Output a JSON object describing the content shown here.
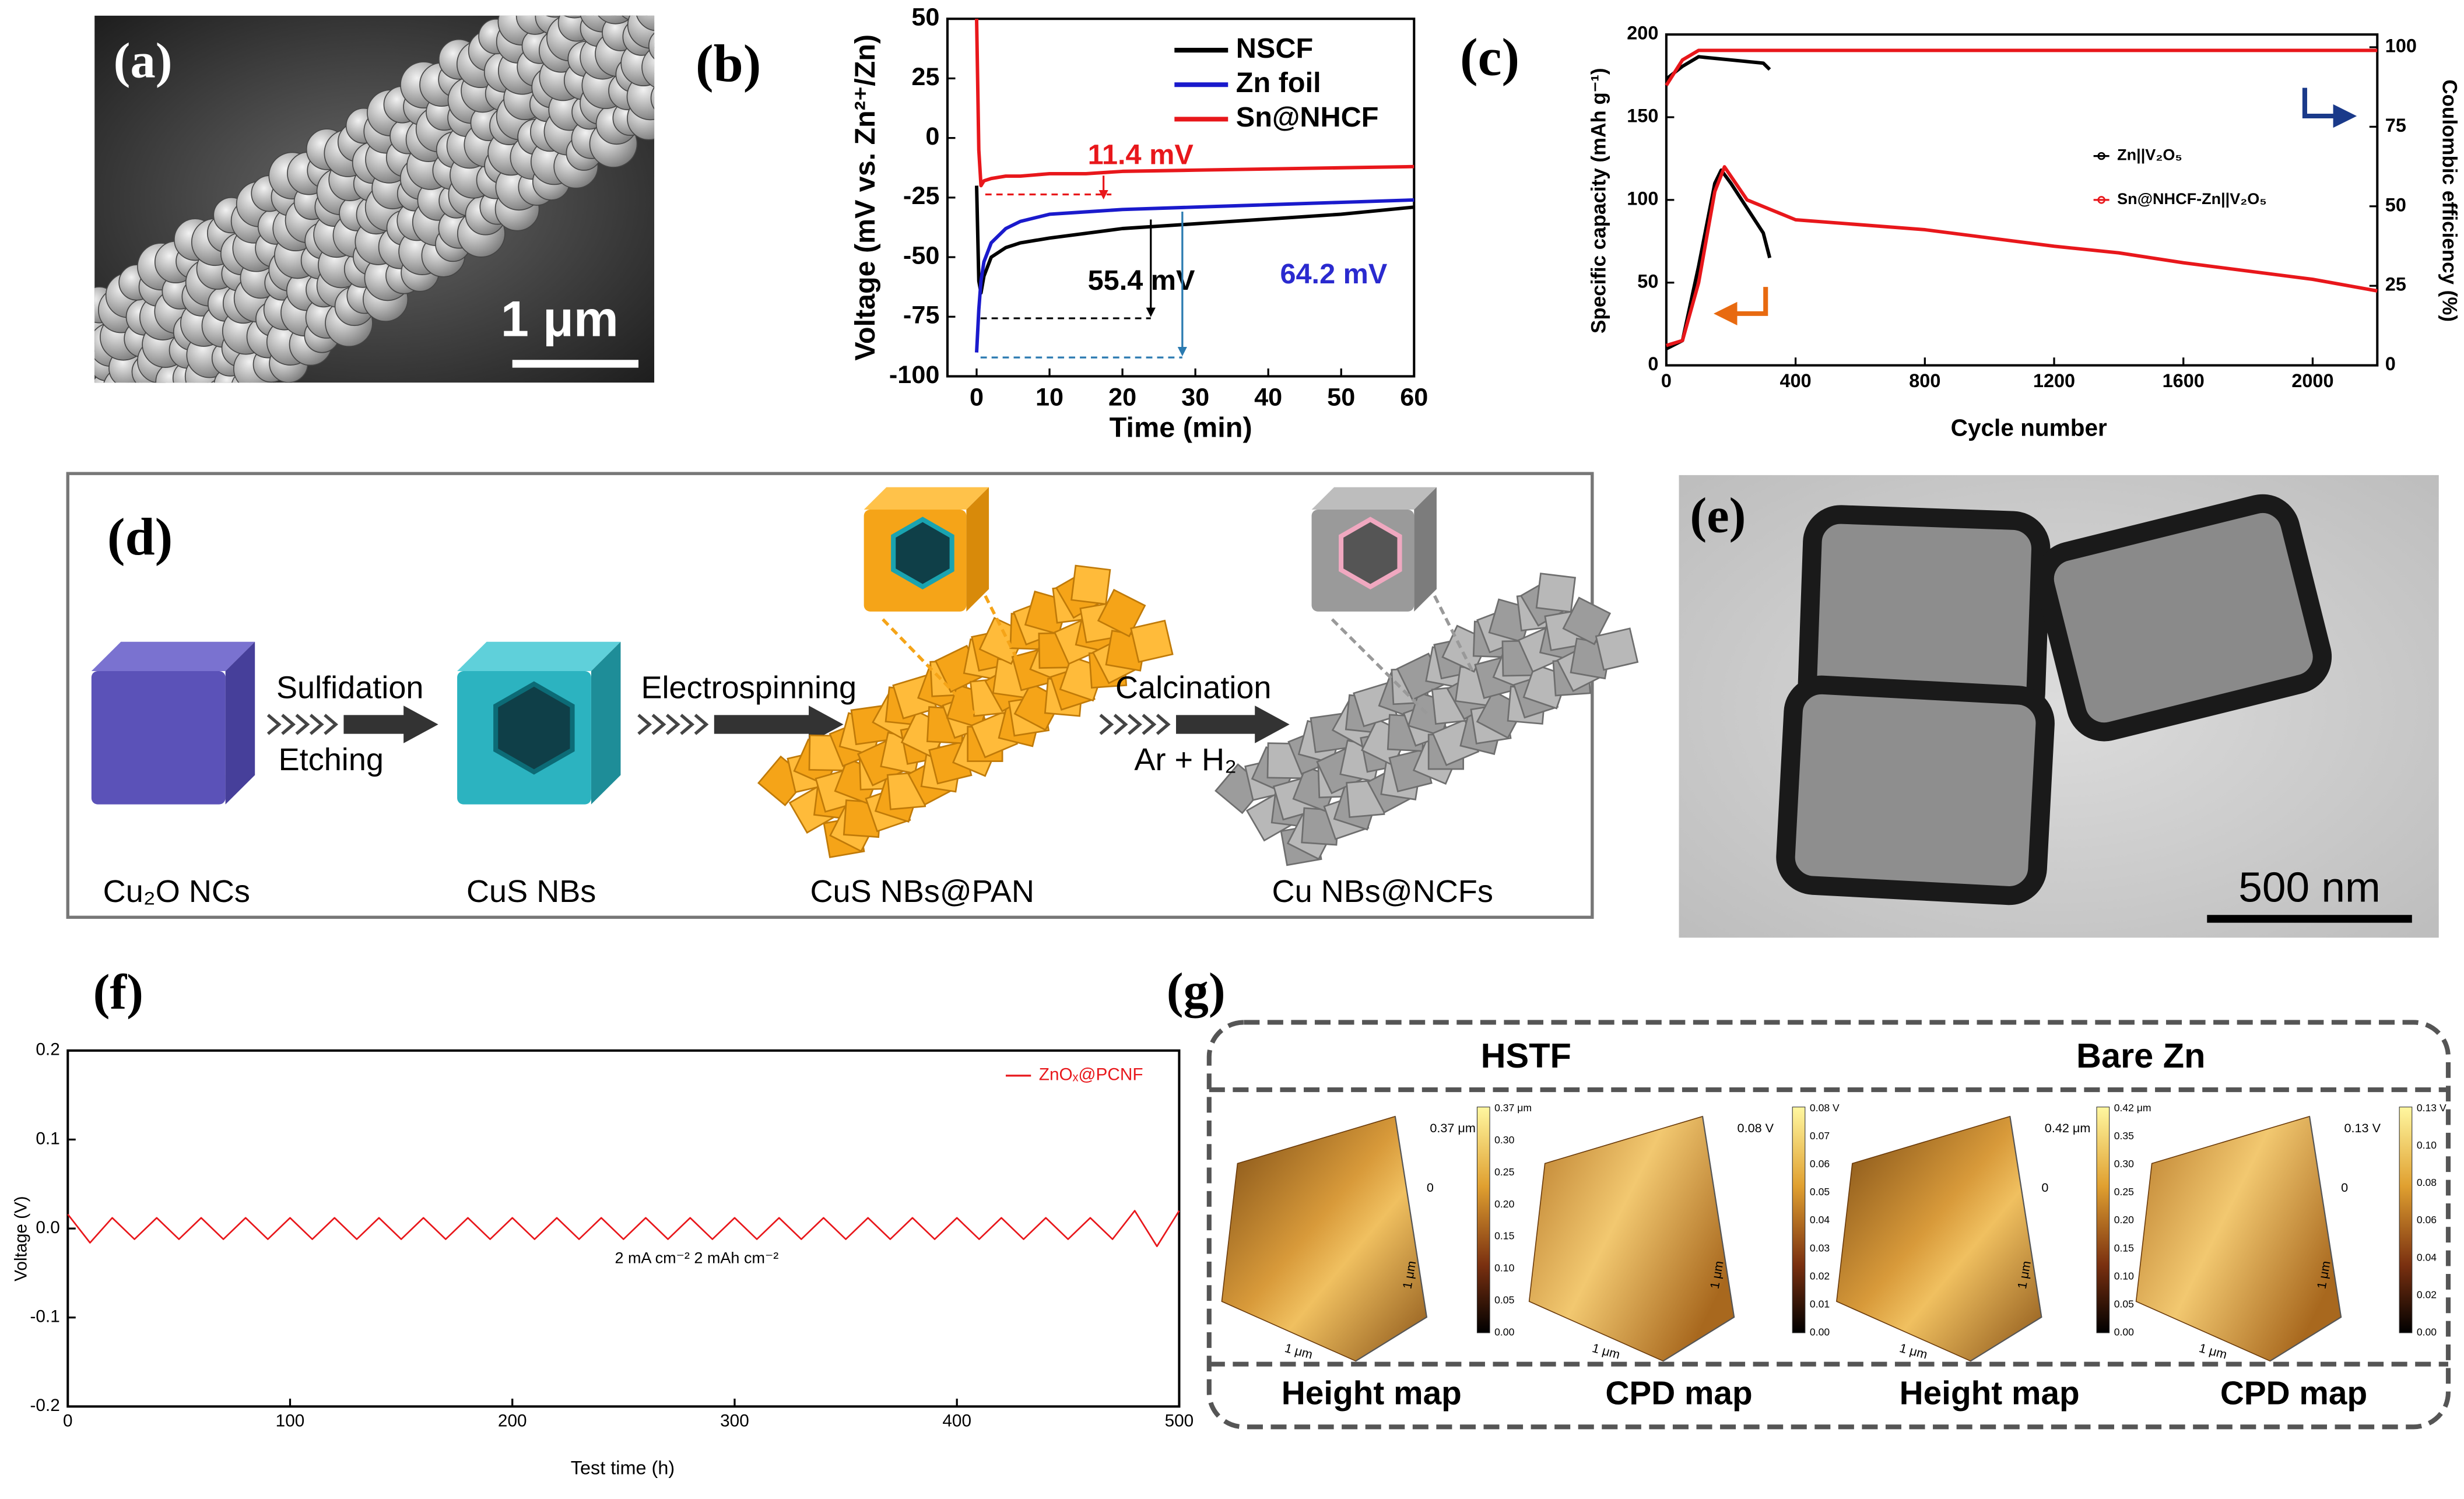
{
  "panels": {
    "a": {
      "label": "(a)",
      "scale_bar": "1 μm"
    },
    "d": {
      "label": "(d)",
      "steps": [
        {
          "above": "Sulfidation",
          "below": "Etching"
        },
        {
          "above": "Electrospinning"
        },
        {
          "above": "Calcination",
          "below": "Ar + H₂"
        }
      ],
      "stages": [
        "Cu₂O NCs",
        "CuS NBs",
        "CuS NBs@PAN",
        "Cu NBs@NCFs"
      ]
    },
    "e": {
      "label": "(e)",
      "scale_bar": "500 nm"
    },
    "g": {
      "label": "(g)",
      "groups": [
        "HSTF",
        "Bare Zn"
      ],
      "maps": [
        {
          "title": "Height map",
          "z_top": "0.37 μm",
          "z_zero": "0",
          "axis": "1 μm",
          "colorbar": [
            "0.37 μm",
            "0.30",
            "0.25",
            "0.20",
            "0.15",
            "0.10",
            "0.05",
            "0.00"
          ]
        },
        {
          "title": "CPD map",
          "z_top": "0.08 V",
          "axis": "1 μm",
          "colorbar": [
            "0.08 V",
            "0.07",
            "0.06",
            "0.05",
            "0.04",
            "0.03",
            "0.02",
            "0.01",
            "0.00"
          ]
        },
        {
          "title": "Height map",
          "z_top": "0.42 μm",
          "z_zero": "0",
          "axis": "1 μm",
          "colorbar": [
            "0.42 μm",
            "0.35",
            "0.30",
            "0.25",
            "0.20",
            "0.15",
            "0.10",
            "0.05",
            "0.00"
          ]
        },
        {
          "title": "CPD map",
          "z_top": "0.13 V",
          "z_zero": "0",
          "axis": "1 μm",
          "colorbar": [
            "0.13 V",
            "0.10",
            "0.08",
            "0.06",
            "0.04",
            "0.02",
            "0.00"
          ]
        }
      ]
    }
  },
  "chart_data": [
    {
      "type": "line",
      "label": "(b)",
      "ylabel": "Voltage (mV vs. Zn²⁺/Zn)",
      "xlabel": "Time (min)",
      "x": [
        0,
        0.3,
        0.6,
        1,
        2,
        4,
        6,
        10,
        15,
        20,
        30,
        40,
        50,
        60
      ],
      "series": [
        {
          "name": "NSCF",
          "color": "#000000",
          "values": [
            -20,
            -60,
            -65,
            -58,
            -50,
            -46,
            -44,
            -42,
            -40,
            -38,
            -36,
            -34,
            -32,
            -29
          ]
        },
        {
          "name": "Zn foil",
          "color": "#1a1acc",
          "values": [
            -90,
            -72,
            -60,
            -52,
            -44,
            -38,
            -35,
            -32,
            -31,
            -30,
            -29,
            -28,
            -27,
            -26
          ]
        },
        {
          "name": "Sn@NHCF",
          "color": "#e8171b",
          "values": [
            50,
            -5,
            -20,
            -18,
            -17,
            -16,
            -16,
            -15,
            -15,
            -14,
            -13.5,
            -13,
            -12.5,
            -12
          ]
        }
      ],
      "xlim": [
        -4,
        60
      ],
      "xticks": [
        0,
        10,
        20,
        30,
        40,
        50,
        60
      ],
      "ylim": [
        -100,
        50
      ],
      "yticks": [
        -100,
        -75,
        -50,
        -25,
        0,
        25,
        50
      ],
      "legend": "upper right",
      "annotations": [
        "11.4 mV",
        "55.4 mV",
        "64.2 mV"
      ]
    },
    {
      "type": "line",
      "label": "(c)",
      "ylabel": "Specific capacity (mAh g⁻¹)",
      "y2label": "Coulombic efficiency (%)",
      "xlabel": "Cycle number",
      "series": [
        {
          "name": "Zn||V₂O₅",
          "color": "#000000",
          "x": [
            0,
            50,
            100,
            150,
            170,
            200,
            250,
            300,
            320
          ],
          "values": [
            10,
            15,
            60,
            110,
            118,
            110,
            95,
            80,
            65
          ]
        },
        {
          "name": "Sn@NHCF-Zn||V₂O₅",
          "color": "#e8171b",
          "x": [
            0,
            50,
            100,
            150,
            180,
            250,
            400,
            800,
            1200,
            1400,
            1600,
            2000,
            2200
          ],
          "values": [
            12,
            15,
            50,
            105,
            120,
            100,
            88,
            82,
            72,
            68,
            62,
            52,
            45
          ]
        },
        {
          "color": "#000000",
          "axis": "y2",
          "x": [
            0,
            50,
            100,
            200,
            300,
            320
          ],
          "values": [
            90,
            94,
            97,
            96,
            95,
            93
          ]
        },
        {
          "color": "#e8171b",
          "axis": "y2",
          "x": [
            0,
            50,
            100,
            400,
            800,
            1200,
            1600,
            2000,
            2200
          ],
          "values": [
            88,
            96,
            99,
            99,
            99,
            99,
            99,
            99,
            99
          ]
        }
      ],
      "xlim": [
        0,
        2200
      ],
      "xticks": [
        0,
        400,
        800,
        1200,
        1600,
        2000
      ],
      "ylim": [
        0,
        200
      ],
      "yticks": [
        0,
        50,
        100,
        150,
        200
      ],
      "y2lim": [
        0,
        104
      ],
      "y2ticks": [
        0,
        25,
        50,
        75,
        100
      ],
      "legend": "center right"
    },
    {
      "type": "line",
      "label": "(f)",
      "ylabel": "Voltage (V)",
      "xlabel": "Test time (h)",
      "annotations": [
        "2 mA cm⁻² 2 mAh cm⁻²"
      ],
      "x": [
        0,
        10,
        20,
        30,
        40,
        50,
        60,
        70,
        80,
        90,
        100,
        110,
        120,
        130,
        140,
        150,
        160,
        170,
        180,
        190,
        200,
        210,
        220,
        230,
        240,
        250,
        260,
        270,
        280,
        290,
        300,
        310,
        320,
        330,
        340,
        350,
        360,
        370,
        380,
        390,
        400,
        410,
        420,
        430,
        440,
        450,
        460,
        470,
        480,
        490,
        500
      ],
      "series": [
        {
          "name": "ZnOₓ@PCNF",
          "color": "#e8171b",
          "values": [
            0.016,
            -0.016,
            0.012,
            -0.012,
            0.012,
            -0.012,
            0.012,
            -0.012,
            0.012,
            -0.012,
            0.012,
            -0.012,
            0.012,
            -0.012,
            0.012,
            -0.012,
            0.012,
            -0.012,
            0.012,
            -0.012,
            0.012,
            -0.012,
            0.012,
            -0.012,
            0.012,
            -0.012,
            0.012,
            -0.012,
            0.012,
            -0.012,
            0.012,
            -0.012,
            0.012,
            -0.012,
            0.012,
            -0.012,
            0.012,
            -0.012,
            0.012,
            -0.012,
            0.012,
            -0.012,
            0.012,
            -0.012,
            0.012,
            -0.012,
            0.012,
            -0.012,
            0.02,
            -0.02,
            0.02
          ]
        }
      ],
      "xlim": [
        0,
        500
      ],
      "xticks": [
        0,
        100,
        200,
        300,
        400,
        500
      ],
      "ylim": [
        -0.2,
        0.2
      ],
      "yticks": [
        -0.2,
        -0.1,
        {
          "value": 0,
          "label": "0.0"
        },
        0.1,
        0.2
      ],
      "legend": "upper right"
    }
  ]
}
